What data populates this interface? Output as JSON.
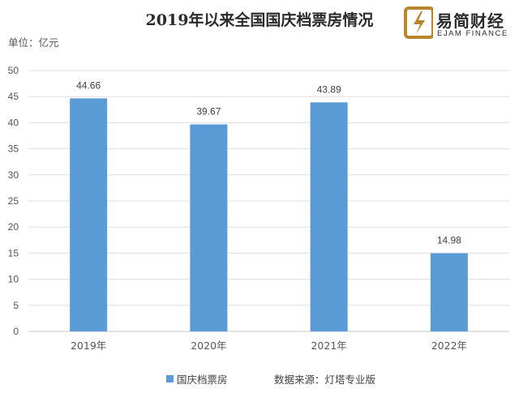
{
  "logo": {
    "name_cn": "易简财经",
    "name_en": "EJAM FINANCE"
  },
  "source_note": "数据来源：灯塔专业版",
  "chart_data": {
    "type": "bar",
    "title": "2019年以来全国国庆档票房情况",
    "unit_label": "单位：亿元",
    "categories": [
      "2019年",
      "2020年",
      "2021年",
      "2022年"
    ],
    "series": [
      {
        "name": "国庆档票房",
        "values": [
          44.66,
          39.67,
          43.89,
          14.98
        ],
        "color": "#5b9bd5"
      }
    ],
    "ylim": [
      0,
      50
    ],
    "yticks": [
      0,
      5,
      10,
      15,
      20,
      25,
      30,
      35,
      40,
      45,
      50
    ],
    "grid": true,
    "legend": "bottom"
  }
}
